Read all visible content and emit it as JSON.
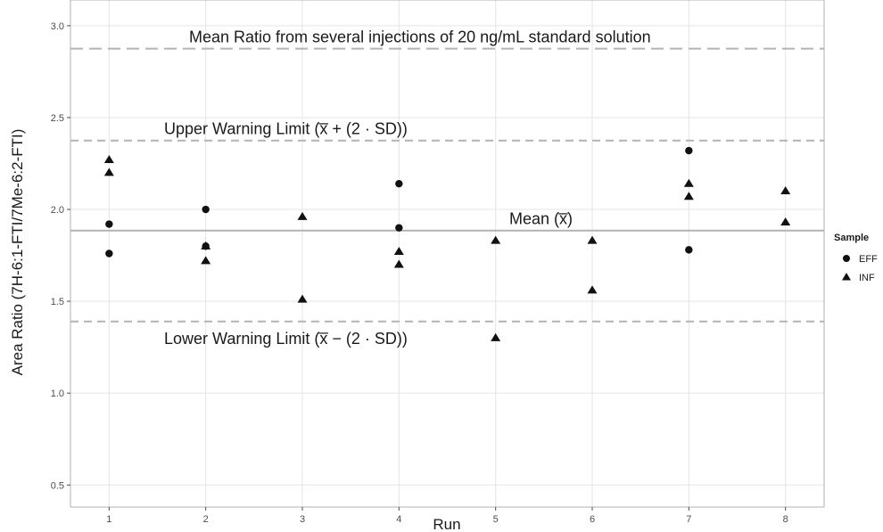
{
  "chart_data": {
    "type": "scatter",
    "title": "",
    "xlabel": "Run",
    "ylabel": "Area Ratio (7H-6:1-FTI/7Me-6:2-FTI)",
    "xlim": [
      0.6,
      8.4
    ],
    "ylim": [
      0.38,
      3.14
    ],
    "x_ticks": [
      "1",
      "2",
      "3",
      "4",
      "5",
      "6",
      "7",
      "8"
    ],
    "y_ticks": [
      "0.5",
      "1.0",
      "1.5",
      "2.0",
      "2.5",
      "3.0"
    ],
    "grid": true,
    "legend": {
      "title": "Sample",
      "position": "right"
    },
    "series": [
      {
        "name": "EFF",
        "marker": "circle",
        "points": [
          {
            "x": 1,
            "y": 1.92
          },
          {
            "x": 1,
            "y": 1.76
          },
          {
            "x": 2,
            "y": 2.0
          },
          {
            "x": 2,
            "y": 1.8
          },
          {
            "x": 4,
            "y": 2.14
          },
          {
            "x": 4,
            "y": 1.9
          },
          {
            "x": 7,
            "y": 2.32
          },
          {
            "x": 7,
            "y": 1.78
          }
        ]
      },
      {
        "name": "INF",
        "marker": "triangle",
        "points": [
          {
            "x": 1,
            "y": 2.27
          },
          {
            "x": 1,
            "y": 2.2
          },
          {
            "x": 2,
            "y": 1.8
          },
          {
            "x": 2,
            "y": 1.72
          },
          {
            "x": 3,
            "y": 1.96
          },
          {
            "x": 3,
            "y": 1.51
          },
          {
            "x": 4,
            "y": 1.77
          },
          {
            "x": 4,
            "y": 1.7
          },
          {
            "x": 5,
            "y": 1.83
          },
          {
            "x": 5,
            "y": 1.3
          },
          {
            "x": 6,
            "y": 1.83
          },
          {
            "x": 6,
            "y": 1.56
          },
          {
            "x": 7,
            "y": 2.14
          },
          {
            "x": 7,
            "y": 2.07
          },
          {
            "x": 8,
            "y": 2.1
          },
          {
            "x": 8,
            "y": 1.93
          }
        ]
      }
    ],
    "reference_lines": [
      {
        "y": 2.875,
        "style": "long-dash",
        "label": "Mean Ratio from several injections of 20 ng/mL standard solution"
      },
      {
        "y": 2.375,
        "style": "dash",
        "label": "Upper Warning Limit (x̅ + (2 · SD))"
      },
      {
        "y": 1.885,
        "style": "solid",
        "label": "Mean (x̅)"
      },
      {
        "y": 1.39,
        "style": "dash",
        "label": "Lower Warning Limit (x̅ − (2 · SD))"
      }
    ],
    "colors": {
      "points": "#111111",
      "reference": "#b3b3b3",
      "grid": "#e5e5e5",
      "panel_border": "#b0b0b0"
    }
  }
}
